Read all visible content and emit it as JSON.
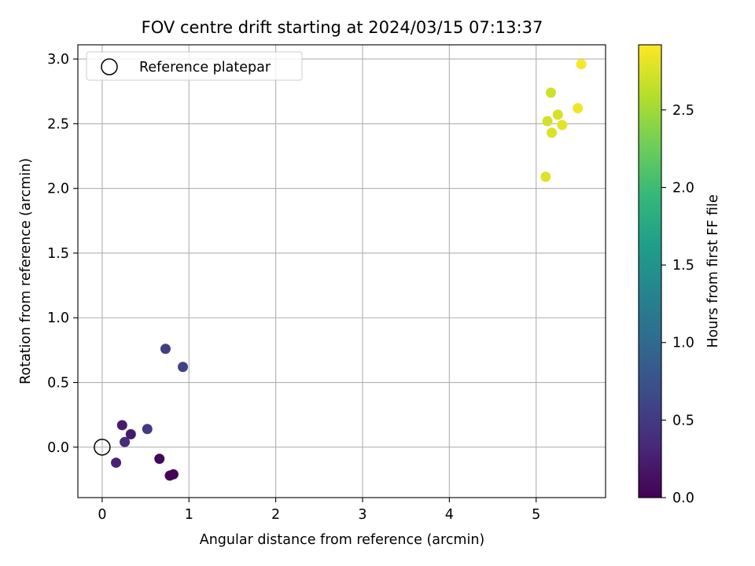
{
  "chart_data": {
    "type": "scatter",
    "title": "FOV centre drift starting at 2024/03/15 07:13:37",
    "xlabel": "Angular distance from reference (arcmin)",
    "ylabel": "Rotation from reference (arcmin)",
    "xlim": [
      -0.28,
      5.8
    ],
    "ylim": [
      -0.39,
      3.11
    ],
    "xticks": [
      0,
      1,
      2,
      3,
      4,
      5
    ],
    "xtick_labels": [
      "0",
      "1",
      "2",
      "3",
      "4",
      "5"
    ],
    "yticks": [
      0.0,
      0.5,
      1.0,
      1.5,
      2.0,
      2.5,
      3.0
    ],
    "ytick_labels": [
      "0.0",
      "0.5",
      "1.0",
      "1.5",
      "2.0",
      "2.5",
      "3.0"
    ],
    "grid": true,
    "legend": {
      "placement": "upper-left",
      "entries": [
        {
          "label": "Reference platepar",
          "marker": "hollow-circle",
          "color": "#000000"
        }
      ]
    },
    "reference_point": {
      "x": 0,
      "y": 0
    },
    "colorbar": {
      "label": "Hours from first FF file",
      "colormap": "viridis",
      "range": [
        0.0,
        2.92
      ],
      "ticks": [
        0.0,
        0.5,
        1.0,
        1.5,
        2.0,
        2.5
      ],
      "tick_labels": [
        "0.0",
        "0.5",
        "1.0",
        "1.5",
        "2.0",
        "2.5"
      ],
      "colormap_stops": [
        "#440154",
        "#482878",
        "#3e4989",
        "#31688e",
        "#26828e",
        "#1f9e89",
        "#35b779",
        "#6ece58",
        "#b5de2b",
        "#fde725"
      ]
    },
    "points": [
      {
        "x": 0.66,
        "y": -0.09,
        "hours": 0.05
      },
      {
        "x": 0.78,
        "y": -0.22,
        "hours": 0.03
      },
      {
        "x": 0.82,
        "y": -0.21,
        "hours": 0.01
      },
      {
        "x": 0.16,
        "y": -0.12,
        "hours": 0.28
      },
      {
        "x": 0.23,
        "y": 0.17,
        "hours": 0.22
      },
      {
        "x": 0.33,
        "y": 0.1,
        "hours": 0.2
      },
      {
        "x": 0.26,
        "y": 0.04,
        "hours": 0.38
      },
      {
        "x": 0.52,
        "y": 0.14,
        "hours": 0.5
      },
      {
        "x": 0.73,
        "y": 0.76,
        "hours": 0.55
      },
      {
        "x": 0.93,
        "y": 0.62,
        "hours": 0.58
      },
      {
        "x": 5.11,
        "y": 2.09,
        "hours": 2.78
      },
      {
        "x": 5.13,
        "y": 2.52,
        "hours": 2.72
      },
      {
        "x": 5.17,
        "y": 2.74,
        "hours": 2.7
      },
      {
        "x": 5.18,
        "y": 2.43,
        "hours": 2.76
      },
      {
        "x": 5.25,
        "y": 2.57,
        "hours": 2.74
      },
      {
        "x": 5.3,
        "y": 2.49,
        "hours": 2.8
      },
      {
        "x": 5.48,
        "y": 2.62,
        "hours": 2.86
      },
      {
        "x": 5.52,
        "y": 2.96,
        "hours": 2.9
      }
    ]
  }
}
